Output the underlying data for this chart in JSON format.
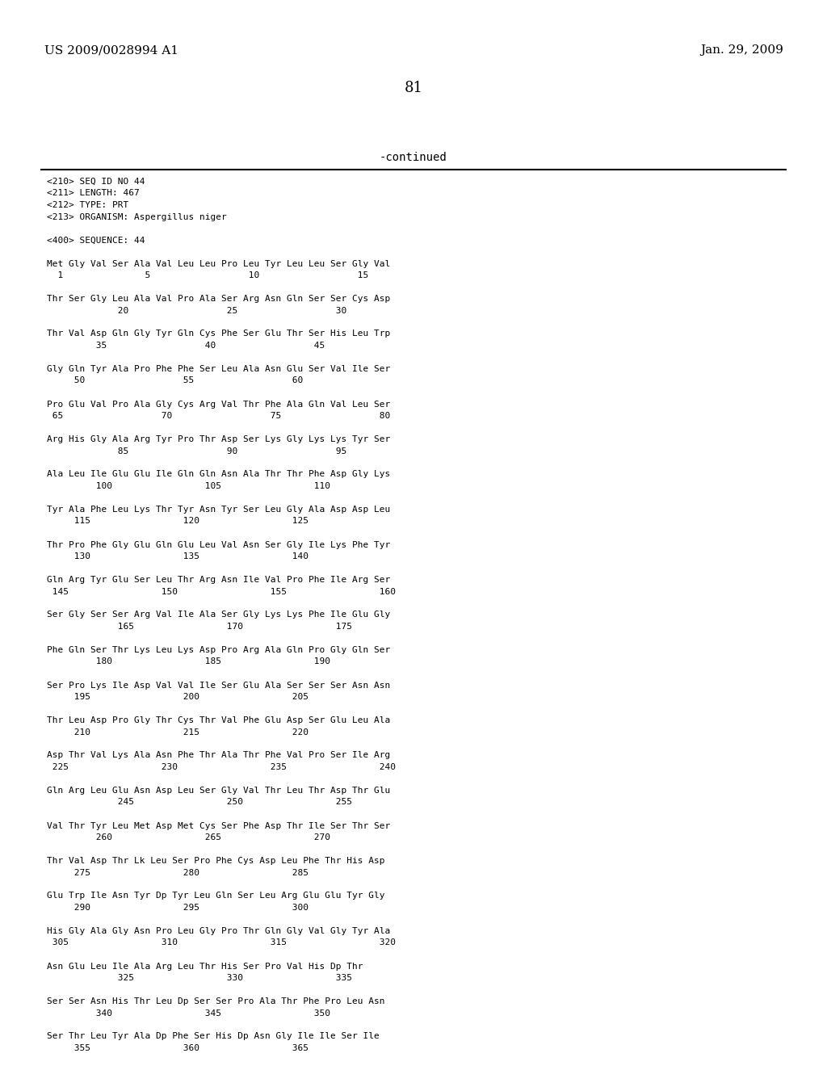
{
  "header_left": "US 2009/0028994 A1",
  "header_right": "Jan. 29, 2009",
  "page_number": "81",
  "continued_label": "-continued",
  "background_color": "#ffffff",
  "text_color": "#000000",
  "content_lines": [
    "<210> SEQ ID NO 44",
    "<211> LENGTH: 467",
    "<212> TYPE: PRT",
    "<213> ORGANISM: Aspergillus niger",
    "",
    "<400> SEQUENCE: 44",
    "",
    "Met Gly Val Ser Ala Val Leu Leu Pro Leu Tyr Leu Leu Ser Gly Val",
    "  1               5                  10                  15",
    "",
    "Thr Ser Gly Leu Ala Val Pro Ala Ser Arg Asn Gln Ser Ser Cys Asp",
    "             20                  25                  30",
    "",
    "Thr Val Asp Gln Gly Tyr Gln Cys Phe Ser Glu Thr Ser His Leu Trp",
    "         35                  40                  45",
    "",
    "Gly Gln Tyr Ala Pro Phe Phe Ser Leu Ala Asn Glu Ser Val Ile Ser",
    "     50                  55                  60",
    "",
    "Pro Glu Val Pro Ala Gly Cys Arg Val Thr Phe Ala Gln Val Leu Ser",
    " 65                  70                  75                  80",
    "",
    "Arg His Gly Ala Arg Tyr Pro Thr Asp Ser Lys Gly Lys Lys Tyr Ser",
    "             85                  90                  95",
    "",
    "Ala Leu Ile Glu Glu Ile Gln Gln Asn Ala Thr Thr Phe Asp Gly Lys",
    "         100                 105                 110",
    "",
    "Tyr Ala Phe Leu Lys Thr Tyr Asn Tyr Ser Leu Gly Ala Asp Asp Leu",
    "     115                 120                 125",
    "",
    "Thr Pro Phe Gly Glu Gln Glu Leu Val Asn Ser Gly Ile Lys Phe Tyr",
    "     130                 135                 140",
    "",
    "Gln Arg Tyr Glu Ser Leu Thr Arg Asn Ile Val Pro Phe Ile Arg Ser",
    " 145                 150                 155                 160",
    "",
    "Ser Gly Ser Ser Arg Val Ile Ala Ser Gly Lys Lys Phe Ile Glu Gly",
    "             165                 170                 175",
    "",
    "Phe Gln Ser Thr Lys Leu Lys Asp Pro Arg Ala Gln Pro Gly Gln Ser",
    "         180                 185                 190",
    "",
    "Ser Pro Lys Ile Asp Val Val Ile Ser Glu Ala Ser Ser Ser Asn Asn",
    "     195                 200                 205",
    "",
    "Thr Leu Asp Pro Gly Thr Cys Thr Val Phe Glu Asp Ser Glu Leu Ala",
    "     210                 215                 220",
    "",
    "Asp Thr Val Lys Ala Asn Phe Thr Ala Thr Phe Val Pro Ser Ile Arg",
    " 225                 230                 235                 240",
    "",
    "Gln Arg Leu Glu Asn Asp Leu Ser Gly Val Thr Leu Thr Asp Thr Glu",
    "             245                 250                 255",
    "",
    "Val Thr Tyr Leu Met Asp Met Cys Ser Phe Asp Thr Ile Ser Thr Ser",
    "         260                 265                 270",
    "",
    "Thr Val Asp Thr Lk Leu Ser Pro Phe Cys Asp Leu Phe Thr His Asp",
    "     275                 280                 285",
    "",
    "Glu Trp Ile Asn Tyr Dp Tyr Leu Gln Ser Leu Arg Glu Glu Tyr Gly",
    "     290                 295                 300",
    "",
    "His Gly Ala Gly Asn Pro Leu Gly Pro Thr Gln Gly Val Gly Tyr Ala",
    " 305                 310                 315                 320",
    "",
    "Asn Glu Leu Ile Ala Arg Leu Thr His Ser Pro Val His Dp Thr",
    "             325                 330                 335",
    "",
    "Ser Ser Asn His Thr Leu Dp Ser Ser Pro Ala Thr Phe Pro Leu Asn",
    "         340                 345                 350",
    "",
    "Ser Thr Leu Tyr Ala Dp Phe Ser His Dp Asn Gly Ile Ile Ser Ile",
    "     355                 360                 365"
  ]
}
